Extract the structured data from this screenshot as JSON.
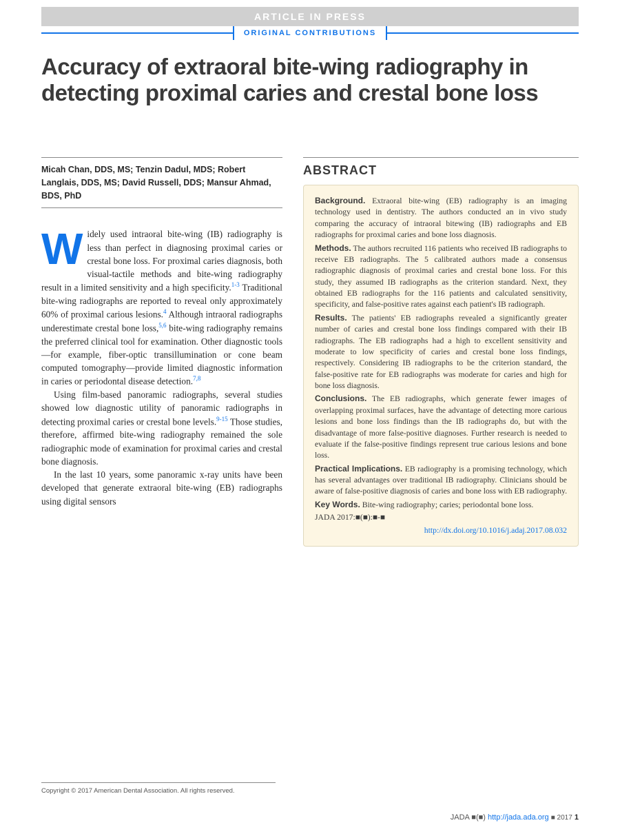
{
  "banner": {
    "text": "ARTICLE IN PRESS"
  },
  "sectionLabel": "ORIGINAL CONTRIBUTIONS",
  "title": "Accuracy of extraoral bite-wing radiography in detecting proximal caries and crestal bone loss",
  "authors": "Micah Chan, DDS, MS; Tenzin Dadul, MDS; Robert Langlais, DDS, MS; David Russell, DDS; Mansur Ahmad, BDS, PhD",
  "body": {
    "p1a": "idely used intraoral bite-wing (IB) radiography is less than perfect in diagnosing proximal caries or crestal bone loss. For proximal caries diagnosis, both visual-tactile methods and bite-wing radiography result in a limited sensitivity and a high specificity.",
    "p1b": " Traditional bite-wing radiographs are reported to reveal only approximately 60% of proximal carious lesions.",
    "p1c": " Although intraoral radiographs underestimate crestal bone loss,",
    "p1d": " bite-wing radiography remains the preferred clinical tool for examination. Other diagnostic tools—for example, fiber-optic transillumination or cone beam computed tomography—provide limited diagnostic information in caries or periodontal disease detection.",
    "p2a": "Using film-based panoramic radiographs, several studies showed low diagnostic utility of panoramic radiographs in detecting proximal caries or crestal bone levels.",
    "p2b": " Those studies, therefore, affirmed bite-wing radiography remained the sole radiographic mode of examination for proximal caries and crestal bone diagnosis.",
    "p3": "In the last 10 years, some panoramic x-ray units have been developed that generate extraoral bite-wing (EB) radiographs using digital sensors",
    "refs": {
      "r1": "1-3",
      "r2": "4",
      "r3": "5,6",
      "r4": "7,8",
      "r5": "9-15"
    }
  },
  "abstract": {
    "label": "ABSTRACT",
    "background": {
      "head": "Background.",
      "text": " Extraoral bite-wing (EB) radiography is an imaging technology used in dentistry. The authors conducted an in vivo study comparing the accuracy of intraoral bitewing (IB) radiographs and EB radiographs for proximal caries and bone loss diagnosis."
    },
    "methods": {
      "head": "Methods.",
      "text": " The authors recruited 116 patients who received IB radiographs to receive EB radiographs. The 5 calibrated authors made a consensus radiographic diagnosis of proximal caries and crestal bone loss. For this study, they assumed IB radiographs as the criterion standard. Next, they obtained EB radiographs for the 116 patients and calculated sensitivity, specificity, and false-positive rates against each patient's IB radiograph."
    },
    "results": {
      "head": "Results.",
      "text": " The patients' EB radiographs revealed a significantly greater number of caries and crestal bone loss findings compared with their IB radiographs. The EB radiographs had a high to excellent sensitivity and moderate to low specificity of caries and crestal bone loss findings, respectively. Considering IB radiographs to be the criterion standard, the false-positive rate for EB radiographs was moderate for caries and high for bone loss diagnosis."
    },
    "conclusions": {
      "head": "Conclusions.",
      "text": " The EB radiographs, which generate fewer images of overlapping proximal surfaces, have the advantage of detecting more carious lesions and bone loss findings than the IB radiographs do, but with the disadvantage of more false-positive diagnoses. Further research is needed to evaluate if the false-positive findings represent true carious lesions and bone loss."
    },
    "practical": {
      "head": "Practical Implications.",
      "text": " EB radiography is a promising technology, which has several advantages over traditional IB radiography. Clinicians should be aware of false-positive diagnosis of caries and bone loss with EB radiography."
    },
    "keywords": {
      "head": "Key Words.",
      "text": " Bite-wing radiography; caries; periodontal bone loss."
    },
    "citation": "JADA 2017:■(■):■-■",
    "doi": "http://dx.doi.org/10.1016/j.adaj.2017.08.032"
  },
  "copyright": "Copyright © 2017 American Dental Association. All rights reserved.",
  "footer": {
    "jada": "JADA ■(■)",
    "url": "http://jada.ada.org",
    "date": "■ 2017",
    "page": "1"
  },
  "colors": {
    "bannerBg": "#d0d0d0",
    "bannerText": "#ffffff",
    "brandBlue": "#1174e8",
    "abstractBg": "#fdf6e3",
    "abstractBorder": "#e0d8bd",
    "titleColor": "#3a3a3a",
    "bodyColor": "#2a2a2a"
  },
  "typography": {
    "titleSize": 33,
    "titleWeight": 900,
    "bodySize": 13.3,
    "abstractSize": 11.7,
    "authorSize": 12.5,
    "dropcapSize": 64
  }
}
